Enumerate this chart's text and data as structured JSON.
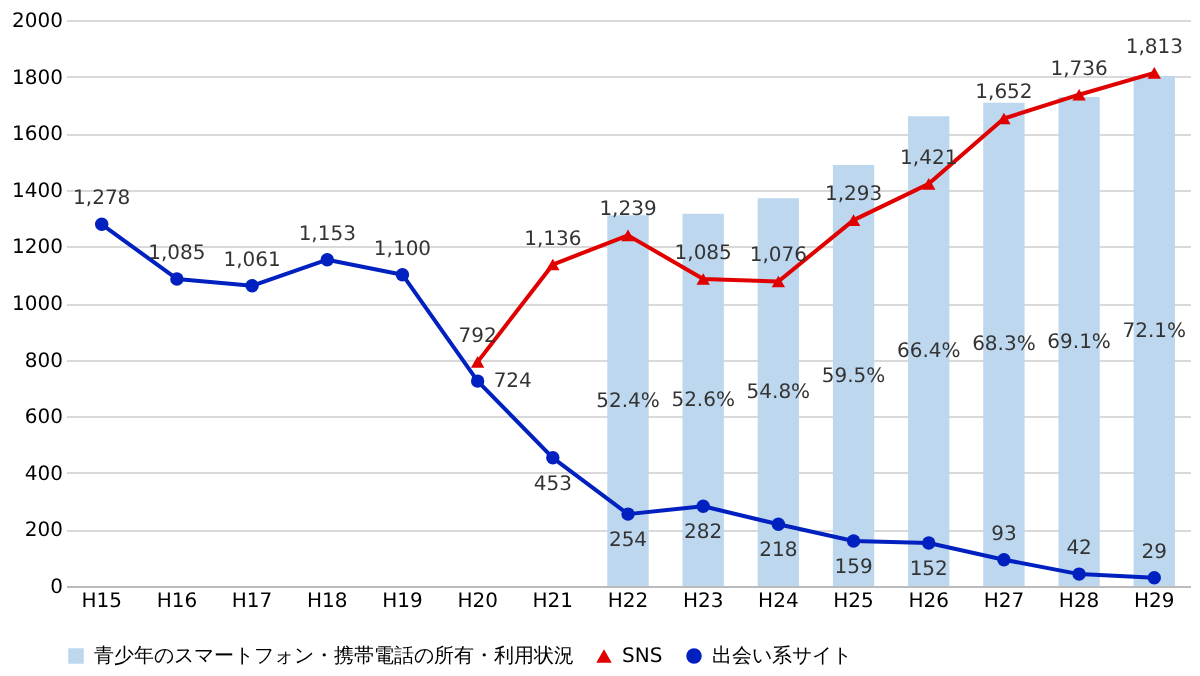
{
  "chart_data": {
    "type": "line",
    "categories": [
      "H15",
      "H16",
      "H17",
      "H18",
      "H19",
      "H20",
      "H21",
      "H22",
      "H23",
      "H24",
      "H25",
      "H26",
      "H27",
      "H28",
      "H29"
    ],
    "ylim": [
      0,
      2000
    ],
    "yticks": [
      0,
      200,
      400,
      600,
      800,
      1000,
      1200,
      1400,
      1600,
      1800,
      2000
    ],
    "y2lim": [
      0,
      80
    ],
    "grid": "y",
    "legend": "bottom",
    "marker": "circle",
    "line_style": "solid",
    "series": [
      {
        "name": "青少年のスマートフォン・携帯電話の所有・利用状況",
        "type": "bar",
        "axis": "y2",
        "color": "#bdd7ee",
        "values": [
          null,
          null,
          null,
          null,
          null,
          null,
          null,
          52.4,
          52.6,
          54.8,
          59.5,
          66.4,
          68.3,
          69.1,
          72.1
        ],
        "value_labels": [
          null,
          null,
          null,
          null,
          null,
          null,
          null,
          "52.4%",
          "52.6%",
          "54.8%",
          "59.5%",
          "66.4%",
          "68.3%",
          "69.1%",
          "72.1%"
        ]
      },
      {
        "name": "SNS",
        "marker": "triangle",
        "color": "#e00000",
        "values": [
          null,
          null,
          null,
          null,
          null,
          792,
          1136,
          1239,
          1085,
          1076,
          1293,
          1421,
          1652,
          1736,
          1813
        ],
        "value_labels": [
          null,
          null,
          null,
          null,
          null,
          "792",
          "1,136",
          "1,239",
          "1,085",
          "1,076",
          "1,293",
          "1,421",
          "1,652",
          "1,736",
          "1,813"
        ]
      },
      {
        "name": "出会い系サイト",
        "color": "#0020c0",
        "values": [
          1278,
          1085,
          1061,
          1153,
          1100,
          724,
          453,
          254,
          282,
          218,
          159,
          152,
          93,
          42,
          29
        ],
        "value_labels": [
          "1,278",
          "1,085",
          "1,061",
          "1,153",
          "1,100",
          "724",
          "453",
          "254",
          "282",
          "218",
          "159",
          "152",
          "93",
          "42",
          "29"
        ]
      }
    ]
  }
}
